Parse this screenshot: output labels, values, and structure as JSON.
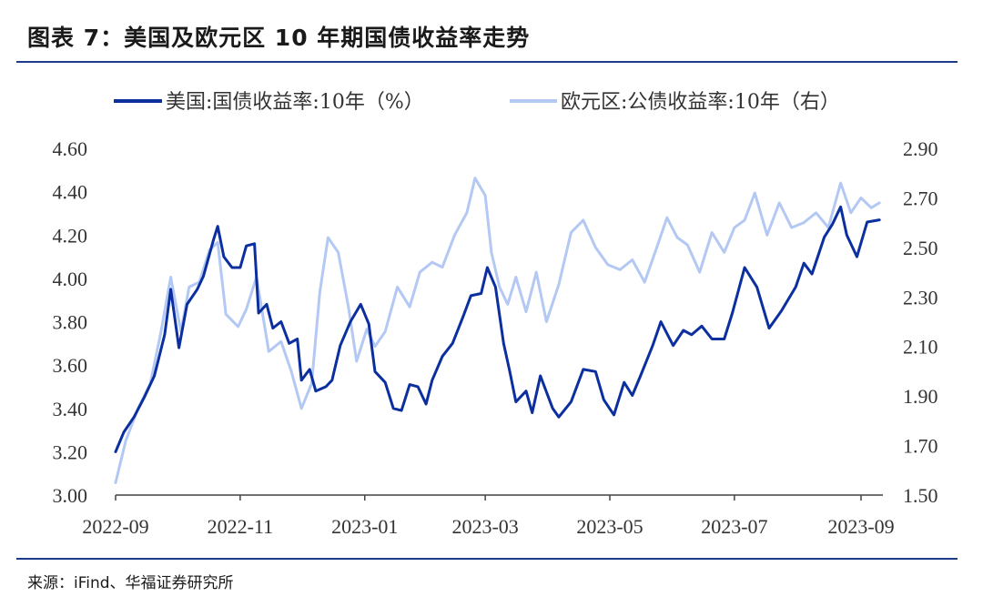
{
  "title": "图表 7：美国及欧元区 10 年期国债收益率走势",
  "source": "来源：iFind、华福证券研究所",
  "colors": {
    "us": "#0b2f9e",
    "eu": "#b4c8f4",
    "rule": "#1e3a8a"
  },
  "chart_data": {
    "type": "line",
    "title": "",
    "left_axis": {
      "ylim": [
        3.0,
        4.6
      ],
      "ticks": [
        "3.00",
        "3.20",
        "3.40",
        "3.60",
        "3.80",
        "4.00",
        "4.20",
        "4.40",
        "4.60"
      ]
    },
    "right_axis": {
      "ylim": [
        1.5,
        2.9
      ],
      "ticks": [
        "1.50",
        "1.70",
        "1.90",
        "2.10",
        "2.30",
        "2.50",
        "2.70",
        "2.90"
      ]
    },
    "x_ticks": [
      "2022-09",
      "2022-11",
      "2023-01",
      "2023-03",
      "2023-05",
      "2023-07",
      "2023-09"
    ],
    "x_range": [
      "2022-09-01",
      "2023-09-10"
    ],
    "legend": {
      "placement": "top",
      "entries": [
        "美国:国债收益率:10年（%）",
        "欧元区:公债收益率:10年（右）"
      ]
    },
    "grid": false,
    "series": [
      {
        "name": "美国:国债收益率:10年（%）",
        "axis": "left",
        "x": [
          "2022-09-01",
          "2022-09-05",
          "2022-09-10",
          "2022-09-15",
          "2022-09-20",
          "2022-09-25",
          "2022-09-28",
          "2022-10-02",
          "2022-10-06",
          "2022-10-11",
          "2022-10-14",
          "2022-10-19",
          "2022-10-21",
          "2022-10-24",
          "2022-10-28",
          "2022-11-01",
          "2022-11-04",
          "2022-11-08",
          "2022-11-10",
          "2022-11-14",
          "2022-11-17",
          "2022-11-21",
          "2022-11-25",
          "2022-11-29",
          "2022-12-01",
          "2022-12-05",
          "2022-12-08",
          "2022-12-13",
          "2022-12-16",
          "2022-12-20",
          "2022-12-25",
          "2022-12-30",
          "2023-01-03",
          "2023-01-06",
          "2023-01-11",
          "2023-01-15",
          "2023-01-19",
          "2023-01-23",
          "2023-01-27",
          "2023-01-31",
          "2023-02-03",
          "2023-02-08",
          "2023-02-13",
          "2023-02-18",
          "2023-02-22",
          "2023-02-27",
          "2023-03-02",
          "2023-03-06",
          "2023-03-10",
          "2023-03-13",
          "2023-03-16",
          "2023-03-21",
          "2023-03-24",
          "2023-03-28",
          "2023-04-03",
          "2023-04-06",
          "2023-04-12",
          "2023-04-18",
          "2023-04-24",
          "2023-04-28",
          "2023-05-03",
          "2023-05-08",
          "2023-05-12",
          "2023-05-16",
          "2023-05-22",
          "2023-05-26",
          "2023-06-01",
          "2023-06-06",
          "2023-06-10",
          "2023-06-15",
          "2023-06-20",
          "2023-06-26",
          "2023-06-30",
          "2023-07-06",
          "2023-07-12",
          "2023-07-18",
          "2023-07-24",
          "2023-07-31",
          "2023-08-04",
          "2023-08-08",
          "2023-08-14",
          "2023-08-18",
          "2023-08-22",
          "2023-08-25",
          "2023-08-30",
          "2023-09-04",
          "2023-09-10"
        ],
        "values": [
          3.2,
          3.29,
          3.36,
          3.45,
          3.55,
          3.74,
          3.95,
          3.68,
          3.88,
          3.95,
          4.01,
          4.18,
          4.24,
          4.1,
          4.05,
          4.05,
          4.15,
          4.16,
          3.84,
          3.88,
          3.77,
          3.8,
          3.7,
          3.72,
          3.53,
          3.58,
          3.48,
          3.5,
          3.53,
          3.69,
          3.8,
          3.88,
          3.79,
          3.57,
          3.52,
          3.4,
          3.39,
          3.51,
          3.5,
          3.42,
          3.53,
          3.64,
          3.7,
          3.82,
          3.92,
          3.93,
          4.05,
          3.96,
          3.7,
          3.57,
          3.43,
          3.48,
          3.38,
          3.55,
          3.4,
          3.36,
          3.43,
          3.58,
          3.57,
          3.44,
          3.37,
          3.52,
          3.46,
          3.55,
          3.69,
          3.8,
          3.69,
          3.76,
          3.74,
          3.78,
          3.72,
          3.72,
          3.84,
          4.05,
          3.96,
          3.77,
          3.85,
          3.96,
          4.07,
          4.02,
          4.19,
          4.25,
          4.33,
          4.2,
          4.1,
          4.26,
          4.27
        ]
      },
      {
        "name": "欧元区:公债收益率:10年（右）",
        "axis": "right",
        "x": [
          "2022-09-01",
          "2022-09-06",
          "2022-09-12",
          "2022-09-18",
          "2022-09-23",
          "2022-09-28",
          "2022-10-03",
          "2022-10-07",
          "2022-10-12",
          "2022-10-17",
          "2022-10-21",
          "2022-10-25",
          "2022-10-31",
          "2022-11-04",
          "2022-11-09",
          "2022-11-15",
          "2022-11-21",
          "2022-11-26",
          "2022-12-01",
          "2022-12-06",
          "2022-12-10",
          "2022-12-14",
          "2022-12-19",
          "2022-12-24",
          "2022-12-28",
          "2023-01-02",
          "2023-01-06",
          "2023-01-11",
          "2023-01-17",
          "2023-01-23",
          "2023-01-28",
          "2023-02-03",
          "2023-02-08",
          "2023-02-14",
          "2023-02-20",
          "2023-02-24",
          "2023-03-01",
          "2023-03-04",
          "2023-03-08",
          "2023-03-12",
          "2023-03-16",
          "2023-03-21",
          "2023-03-26",
          "2023-03-31",
          "2023-04-06",
          "2023-04-12",
          "2023-04-18",
          "2023-04-24",
          "2023-04-30",
          "2023-05-06",
          "2023-05-12",
          "2023-05-18",
          "2023-05-24",
          "2023-05-29",
          "2023-06-03",
          "2023-06-08",
          "2023-06-14",
          "2023-06-20",
          "2023-06-26",
          "2023-07-01",
          "2023-07-06",
          "2023-07-11",
          "2023-07-17",
          "2023-07-23",
          "2023-07-29",
          "2023-08-04",
          "2023-08-10",
          "2023-08-16",
          "2023-08-22",
          "2023-08-27",
          "2023-09-01",
          "2023-09-06",
          "2023-09-10"
        ],
        "values": [
          1.55,
          1.72,
          1.85,
          1.95,
          2.15,
          2.38,
          2.16,
          2.34,
          2.36,
          2.49,
          2.52,
          2.23,
          2.18,
          2.25,
          2.38,
          2.08,
          2.12,
          2.0,
          1.85,
          1.95,
          2.32,
          2.54,
          2.48,
          2.26,
          2.04,
          2.17,
          2.1,
          2.16,
          2.34,
          2.26,
          2.4,
          2.44,
          2.42,
          2.55,
          2.64,
          2.78,
          2.71,
          2.48,
          2.34,
          2.27,
          2.38,
          2.24,
          2.4,
          2.2,
          2.35,
          2.56,
          2.61,
          2.5,
          2.43,
          2.41,
          2.45,
          2.36,
          2.5,
          2.62,
          2.54,
          2.51,
          2.4,
          2.56,
          2.48,
          2.58,
          2.61,
          2.72,
          2.55,
          2.68,
          2.58,
          2.6,
          2.64,
          2.58,
          2.76,
          2.64,
          2.7,
          2.66,
          2.68
        ]
      }
    ]
  }
}
